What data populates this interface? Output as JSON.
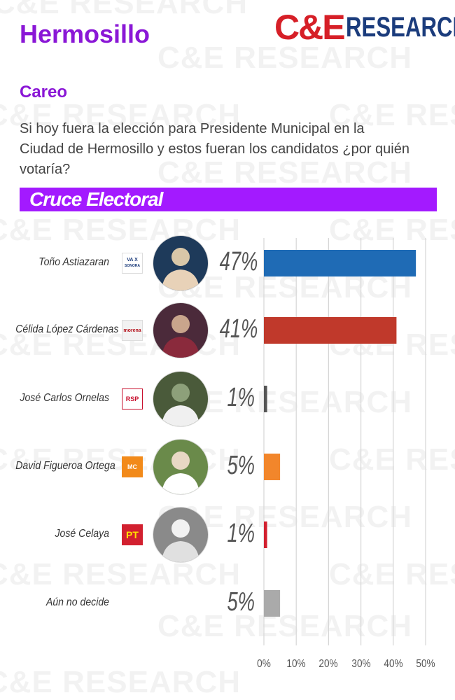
{
  "header": {
    "city": "Hermosillo",
    "logo_prefix": "C&E",
    "logo_suffix": "RESEARCH",
    "section": "Careo",
    "question": "Si hoy fuera la elección para Presidente Municipal en la Ciudad de Hermosillo y estos fueran los candidatos ¿por quién votaría?",
    "banner": "Cruce Electoral"
  },
  "colors": {
    "brand_purple": "#8a17d6",
    "banner_purple": "#a31aff",
    "logo_red": "#d61f27",
    "logo_blue": "#1b3c7c"
  },
  "party_logos": [
    {
      "icon": "va-x-sonora-logo-icon",
      "line1": "VA X",
      "line2": "SONORA"
    },
    {
      "icon": "morena-logo-icon",
      "text": "morena"
    },
    {
      "icon": "rsp-logo-icon",
      "text": "RSP"
    },
    {
      "icon": "movimiento-ciudadano-logo-icon",
      "text": "MC"
    },
    {
      "icon": "pt-logo-icon",
      "text": "PT"
    },
    {
      "icon": "none",
      "text": ""
    }
  ],
  "chart_data": {
    "type": "bar",
    "orientation": "horizontal",
    "title": "Cruce Electoral",
    "categories": [
      "Toño Astiazaran",
      "Célida López Cárdenas",
      "José Carlos Ornelas",
      "David Figueroa Ortega",
      "José Celaya",
      "Aún no decide"
    ],
    "values": [
      47,
      41,
      1,
      5,
      1,
      5
    ],
    "value_labels": [
      "47%",
      "41%",
      "1%",
      "5%",
      "1%",
      "5%"
    ],
    "bar_colors": [
      "#1f6bb5",
      "#c0392b",
      "#555555",
      "#f2862b",
      "#d2202f",
      "#aaaaaa"
    ],
    "xlim": [
      0,
      50
    ],
    "xticks": [
      0,
      10,
      20,
      30,
      40,
      50
    ],
    "xtick_labels": [
      "0%",
      "10%",
      "20%",
      "30%",
      "40%",
      "50%"
    ],
    "grid": true,
    "legend": "none"
  }
}
